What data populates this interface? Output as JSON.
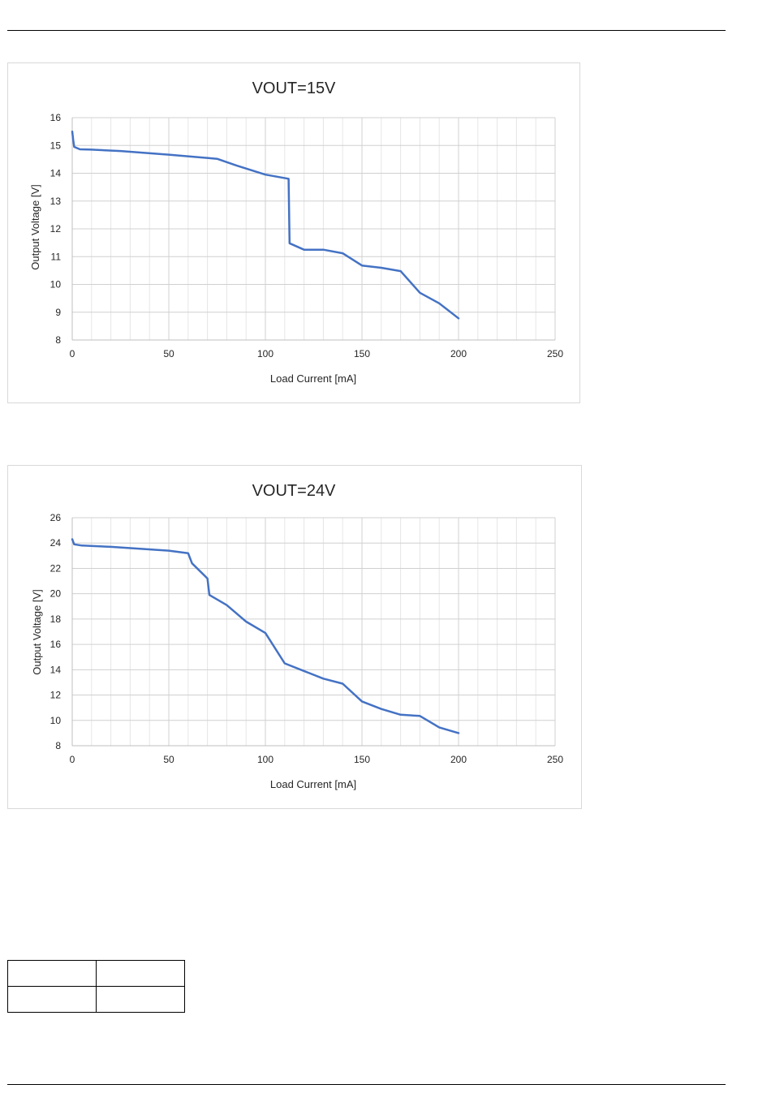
{
  "chart_data": [
    {
      "type": "line",
      "title": "VOUT=15V",
      "xlabel": "Load Current [mA]",
      "ylabel": "Output Voltage [V]",
      "xlim": [
        0,
        250
      ],
      "ylim": [
        8,
        16
      ],
      "xticks": [
        0,
        50,
        100,
        150,
        200,
        250
      ],
      "yticks": [
        8,
        9,
        10,
        11,
        12,
        13,
        14,
        15,
        16
      ],
      "grid": true,
      "series": [
        {
          "color": "#4472c4",
          "x": [
            0,
            0.5,
            1,
            4,
            10,
            25,
            50,
            75,
            85,
            100,
            112,
            112.5,
            120,
            130,
            140,
            150,
            160,
            170,
            180,
            190,
            200
          ],
          "y": [
            15.5,
            15.2,
            14.95,
            14.86,
            14.85,
            14.8,
            14.67,
            14.52,
            14.28,
            13.95,
            13.8,
            11.48,
            11.25,
            11.25,
            11.12,
            10.68,
            10.6,
            10.48,
            9.7,
            9.32,
            8.78
          ]
        }
      ]
    },
    {
      "type": "line",
      "title": "VOUT=24V",
      "xlabel": "Load Current  [mA]",
      "ylabel": "Output Voltage [V]",
      "xlim": [
        0,
        250
      ],
      "ylim": [
        8,
        26
      ],
      "xticks": [
        0,
        50,
        100,
        150,
        200,
        250
      ],
      "yticks": [
        8,
        10,
        12,
        14,
        16,
        18,
        20,
        22,
        24,
        26
      ],
      "grid": true,
      "series": [
        {
          "color": "#4472c4",
          "x": [
            0,
            0.5,
            1,
            5,
            20,
            50,
            60,
            62,
            70,
            71,
            80,
            90,
            100,
            110,
            120,
            130,
            140,
            150,
            160,
            170,
            180,
            190,
            200
          ],
          "y": [
            24.3,
            24.1,
            23.9,
            23.8,
            23.7,
            23.4,
            23.2,
            22.4,
            21.2,
            19.9,
            19.1,
            17.8,
            16.9,
            14.5,
            13.9,
            13.3,
            12.9,
            11.5,
            10.9,
            10.45,
            10.35,
            9.45,
            9.0
          ]
        }
      ]
    }
  ]
}
